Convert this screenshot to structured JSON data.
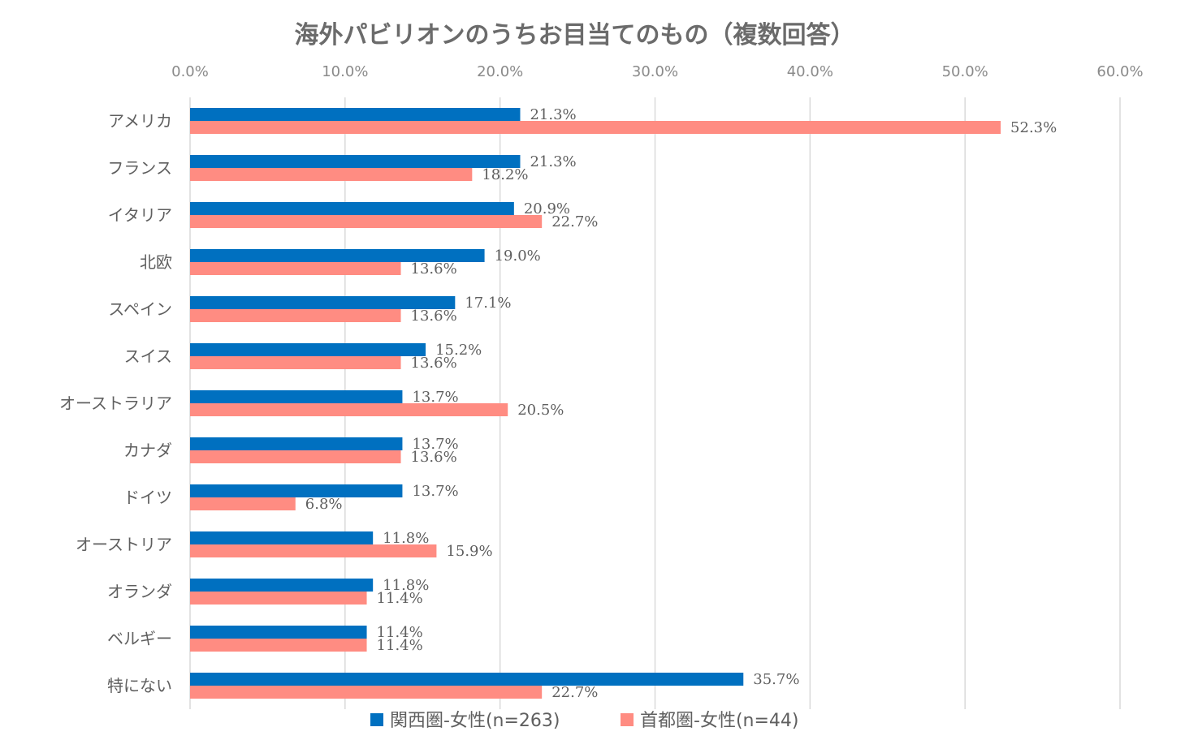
{
  "chart_data": {
    "type": "bar",
    "orientation": "horizontal",
    "title": "海外パビリオンのうちお目当てのもの（複数回答）",
    "categories": [
      "アメリカ",
      "フランス",
      "イタリア",
      "北欧",
      "スペイン",
      "スイス",
      "オーストラリア",
      "カナダ",
      "ドイツ",
      "オーストリア",
      "オランダ",
      "ベルギー",
      "特にない"
    ],
    "series": [
      {
        "name": "関西圏-女性(n=263)",
        "color": "#0070c0",
        "values": [
          21.3,
          21.3,
          20.9,
          19.0,
          17.1,
          15.2,
          13.7,
          13.7,
          13.7,
          11.8,
          11.8,
          11.4,
          35.7
        ],
        "labels": [
          "21.3%",
          "21.3%",
          "20.9%",
          "19.0%",
          "17.1%",
          "15.2%",
          "13.7%",
          "13.7%",
          "13.7%",
          "11.8%",
          "11.8%",
          "11.4%",
          "35.7%"
        ]
      },
      {
        "name": "首都圏-女性(n=44)",
        "color": "#ff8c82",
        "values": [
          52.3,
          18.2,
          22.7,
          13.6,
          13.6,
          13.6,
          20.5,
          13.6,
          6.8,
          15.9,
          11.4,
          11.4,
          22.7
        ],
        "labels": [
          "52.3%",
          "18.2%",
          "22.7%",
          "13.6%",
          "13.6%",
          "13.6%",
          "20.5%",
          "13.6%",
          "6.8%",
          "15.9%",
          "11.4%",
          "11.4%",
          "22.7%"
        ]
      }
    ],
    "xlim": [
      0,
      60
    ],
    "x_ticks": [
      "0.0%",
      "10.0%",
      "20.0%",
      "30.0%",
      "40.0%",
      "50.0%",
      "60.0%"
    ],
    "x_tick_values": [
      0,
      10,
      20,
      30,
      40,
      50,
      60
    ],
    "axis_position": "top",
    "grid": true,
    "legend_position": "bottom"
  }
}
